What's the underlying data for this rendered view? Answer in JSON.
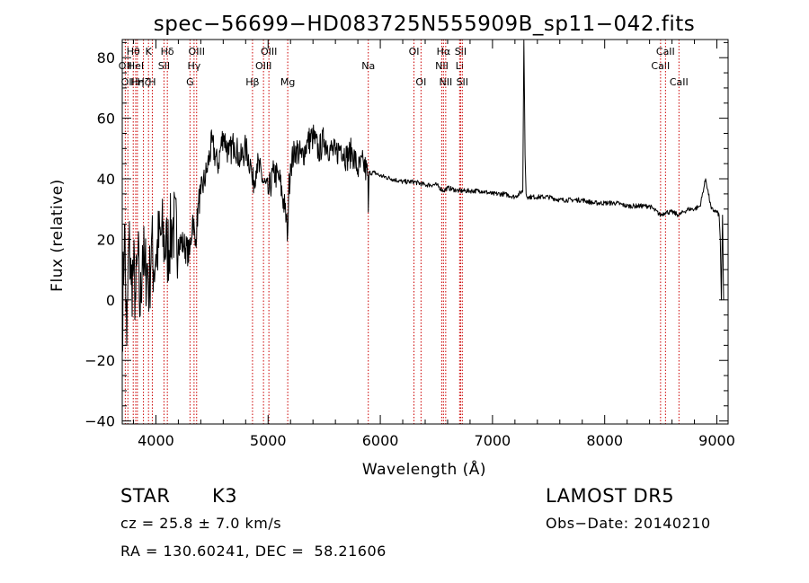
{
  "chart_data": {
    "type": "line",
    "title": "spec−56699−HD083725N555909B_sp11−042.fits",
    "xlabel": "Wavelength (Å)",
    "ylabel": "Flux (relative)",
    "xlim": [
      3700,
      9100
    ],
    "ylim": [
      -41,
      86
    ],
    "x_ticks": [
      4000,
      5000,
      6000,
      7000,
      8000,
      9000
    ],
    "x_tick_labels": [
      "4000",
      "5000",
      "6000",
      "7000",
      "8000",
      "9000"
    ],
    "y_ticks": [
      -40,
      -20,
      0,
      20,
      40,
      60,
      80
    ],
    "y_tick_labels": [
      "−40",
      "−20",
      "0",
      "20",
      "40",
      "60",
      "80"
    ],
    "grid": false,
    "series": [
      {
        "x": [
          3700,
          3720,
          3740,
          3760,
          3780,
          3800,
          3820,
          3840,
          3860,
          3880,
          3900,
          3920,
          3940,
          3960,
          3980,
          4000,
          4050,
          4100,
          4150,
          4200,
          4250,
          4300,
          4330,
          4350,
          4380,
          4400,
          4450,
          4500,
          4550,
          4600,
          4650,
          4700,
          4750,
          4800,
          4850,
          4861,
          4900,
          4950,
          5000,
          5050,
          5100,
          5150,
          5175,
          5183,
          5200,
          5250,
          5300,
          5350,
          5400,
          5450,
          5500,
          5550,
          5600,
          5650,
          5700,
          5750,
          5800,
          5850,
          5890,
          5893,
          5900,
          5950,
          6000,
          6100,
          6200,
          6300,
          6400,
          6500,
          6563,
          6600,
          6700,
          6800,
          6900,
          7000,
          7100,
          7200,
          7270,
          7280,
          7290,
          7300,
          7310,
          7320,
          7400,
          7500,
          7600,
          7700,
          7800,
          7900,
          8000,
          8100,
          8200,
          8300,
          8400,
          8498,
          8542,
          8600,
          8662,
          8700,
          8750,
          8800,
          8850,
          8900,
          8950,
          9000,
          9020,
          9030,
          9040,
          9050,
          9060
        ],
        "y": [
          -10,
          25,
          -15,
          20,
          5,
          10,
          0,
          15,
          -5,
          18,
          8,
          12,
          3,
          20,
          10,
          15,
          22,
          16,
          25,
          20,
          18,
          15,
          28,
          18,
          32,
          35,
          42,
          52,
          44,
          55,
          48,
          52,
          46,
          50,
          44,
          38,
          45,
          40,
          35,
          42,
          40,
          30,
          22,
          35,
          45,
          50,
          47,
          52,
          54,
          49,
          53,
          50,
          48,
          51,
          47,
          49,
          43,
          45,
          41,
          29,
          42,
          42,
          41,
          40,
          39,
          39,
          38,
          38,
          36,
          37,
          36,
          36,
          36,
          35,
          35,
          34,
          36,
          86,
          48,
          35,
          34,
          34,
          34,
          34,
          33,
          33,
          33,
          32,
          32,
          32,
          31,
          31,
          31,
          28,
          29,
          29,
          28,
          29,
          30,
          30,
          31,
          40,
          30,
          29,
          28,
          20,
          0,
          28,
          0
        ]
      }
    ],
    "line_markers": [
      {
        "wavelength": 3727,
        "label": "OII",
        "row": 2
      },
      {
        "wavelength": 3750,
        "label": "OII",
        "row": 3
      },
      {
        "wavelength": 3798,
        "label": "Hθ",
        "row": 1
      },
      {
        "wavelength": 3820,
        "label": "HeI",
        "row": 2
      },
      {
        "wavelength": 3835,
        "label": "Hη",
        "row": 3
      },
      {
        "wavelength": 3889,
        "label": "Hζ",
        "row": 3
      },
      {
        "wavelength": 3934,
        "label": "K",
        "row": 1
      },
      {
        "wavelength": 3968,
        "label": "H",
        "row": 3
      },
      {
        "wavelength": 4072,
        "label": "SII",
        "row": 2
      },
      {
        "wavelength": 4102,
        "label": "Hδ",
        "row": 1
      },
      {
        "wavelength": 4304,
        "label": "G",
        "row": 3
      },
      {
        "wavelength": 4340,
        "label": "Hγ",
        "row": 2
      },
      {
        "wavelength": 4363,
        "label": "OIII",
        "row": 1
      },
      {
        "wavelength": 4861,
        "label": "Hβ",
        "row": 3
      },
      {
        "wavelength": 4959,
        "label": "OIII",
        "row": 2
      },
      {
        "wavelength": 5007,
        "label": "OIII",
        "row": 1
      },
      {
        "wavelength": 5175,
        "label": "Mg",
        "row": 3
      },
      {
        "wavelength": 5893,
        "label": "Na",
        "row": 2
      },
      {
        "wavelength": 6300,
        "label": "OI",
        "row": 1
      },
      {
        "wavelength": 6363,
        "label": "OI",
        "row": 3
      },
      {
        "wavelength": 6548,
        "label": "NII",
        "row": 2
      },
      {
        "wavelength": 6563,
        "label": "Hα",
        "row": 1
      },
      {
        "wavelength": 6583,
        "label": "NII",
        "row": 3
      },
      {
        "wavelength": 6707,
        "label": "Li",
        "row": 2
      },
      {
        "wavelength": 6716,
        "label": "SII",
        "row": 1
      },
      {
        "wavelength": 6731,
        "label": "SII",
        "row": 3
      },
      {
        "wavelength": 8498,
        "label": "CaII",
        "row": 2
      },
      {
        "wavelength": 8542,
        "label": "CaII",
        "row": 1
      },
      {
        "wavelength": 8662,
        "label": "CaII",
        "row": 3
      }
    ]
  },
  "info": {
    "object_class": "STAR",
    "subclass": "K3",
    "redshift": "cz = 25.8 ± 7.0 km/s",
    "coordinates": "RA = 130.60241, DEC =  58.21606",
    "survey": "LAMOST DR5",
    "obs_date": "Obs−Date: 20140210"
  },
  "colors": {
    "background": "#ffffff",
    "spectrum": "#000000",
    "marker_lines": "#cc0000",
    "text": "#000000"
  }
}
